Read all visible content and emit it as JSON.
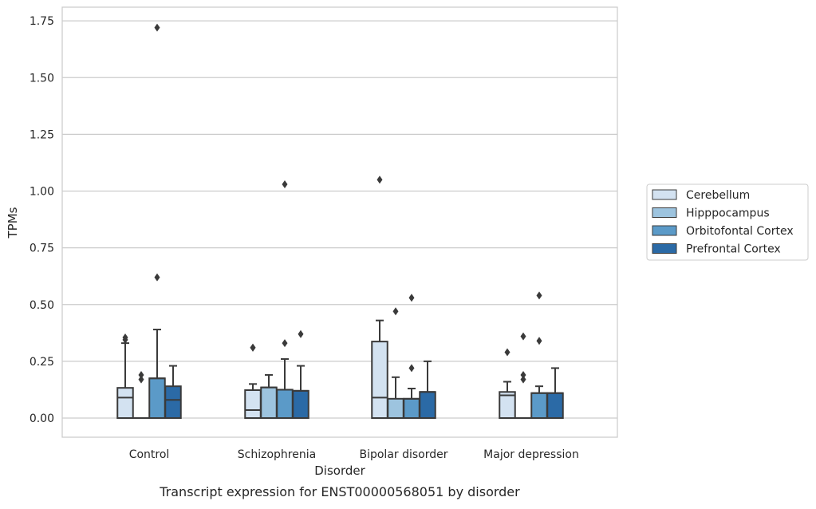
{
  "chart_data": {
    "type": "boxplot",
    "caption": "Transcript expression for ENST00000568051 by disorder",
    "xlabel": "Disorder",
    "ylabel": "TPMs",
    "ylim": [
      -0.085,
      1.81
    ],
    "yticks": [
      "0.00",
      "0.25",
      "0.50",
      "0.75",
      "1.00",
      "1.25",
      "1.50",
      "1.75"
    ],
    "ytick_values": [
      0,
      0.25,
      0.5,
      0.75,
      1.0,
      1.25,
      1.5,
      1.75
    ],
    "grid": true,
    "legend_position": "right",
    "categories": [
      "Control",
      "Schizophrenia",
      "Bipolar disorder",
      "Major depression"
    ],
    "series": [
      {
        "name": "Cerebellum",
        "color": "#d3e2f1",
        "boxes": [
          {
            "q1": 0.0,
            "median": 0.09,
            "q3": 0.133,
            "whisker_low": 0.0,
            "whisker_high": 0.33,
            "outliers": [
              0.355,
              0.345
            ]
          },
          {
            "q1": 0.0,
            "median": 0.035,
            "q3": 0.123,
            "whisker_low": 0.0,
            "whisker_high": 0.15,
            "outliers": [
              0.31,
              0.31
            ]
          },
          {
            "q1": 0.0,
            "median": 0.09,
            "q3": 0.337,
            "whisker_low": 0.0,
            "whisker_high": 0.43,
            "outliers": [
              1.05
            ]
          },
          {
            "q1": 0.0,
            "median": 0.1,
            "q3": 0.115,
            "whisker_low": 0.0,
            "whisker_high": 0.16,
            "outliers": [
              0.29
            ]
          }
        ]
      },
      {
        "name": "Hipppocampus",
        "color": "#9dc4df",
        "boxes": [
          {
            "q1": 0.0,
            "median": 0.0,
            "q3": 0.0,
            "whisker_low": 0.0,
            "whisker_high": 0.0,
            "outliers": [
              0.19,
              0.17
            ]
          },
          {
            "q1": 0.0,
            "median": 0.135,
            "q3": 0.135,
            "whisker_low": 0.0,
            "whisker_high": 0.19,
            "outliers": []
          },
          {
            "q1": 0.0,
            "median": 0.0,
            "q3": 0.085,
            "whisker_low": 0.0,
            "whisker_high": 0.18,
            "outliers": [
              0.47
            ]
          },
          {
            "q1": 0.0,
            "median": 0.0,
            "q3": 0.0,
            "whisker_low": 0.0,
            "whisker_high": 0.0,
            "outliers": [
              0.36,
              0.19,
              0.17
            ]
          }
        ]
      },
      {
        "name": "Orbitofontal Cortex",
        "color": "#5b9ac8",
        "boxes": [
          {
            "q1": 0.0,
            "median": 0.175,
            "q3": 0.175,
            "whisker_low": 0.0,
            "whisker_high": 0.39,
            "outliers": [
              1.72,
              0.62
            ]
          },
          {
            "q1": 0.0,
            "median": 0.125,
            "q3": 0.125,
            "whisker_low": 0.0,
            "whisker_high": 0.26,
            "outliers": [
              1.03,
              0.33
            ]
          },
          {
            "q1": 0.0,
            "median": 0.085,
            "q3": 0.085,
            "whisker_low": 0.0,
            "whisker_high": 0.13,
            "outliers": [
              0.53,
              0.22
            ]
          },
          {
            "q1": 0.0,
            "median": 0.11,
            "q3": 0.11,
            "whisker_low": 0.0,
            "whisker_high": 0.14,
            "outliers": [
              0.54,
              0.34
            ]
          }
        ]
      },
      {
        "name": "Prefrontal Cortex",
        "color": "#2b6aa6",
        "boxes": [
          {
            "q1": 0.0,
            "median": 0.08,
            "q3": 0.14,
            "whisker_low": 0.0,
            "whisker_high": 0.23,
            "outliers": []
          },
          {
            "q1": 0.0,
            "median": 0.12,
            "q3": 0.12,
            "whisker_low": 0.0,
            "whisker_high": 0.23,
            "outliers": [
              0.37
            ]
          },
          {
            "q1": 0.0,
            "median": 0.115,
            "q3": 0.115,
            "whisker_low": 0.0,
            "whisker_high": 0.25,
            "outliers": []
          },
          {
            "q1": 0.0,
            "median": 0.11,
            "q3": 0.11,
            "whisker_low": 0.0,
            "whisker_high": 0.22,
            "outliers": []
          }
        ]
      }
    ]
  }
}
